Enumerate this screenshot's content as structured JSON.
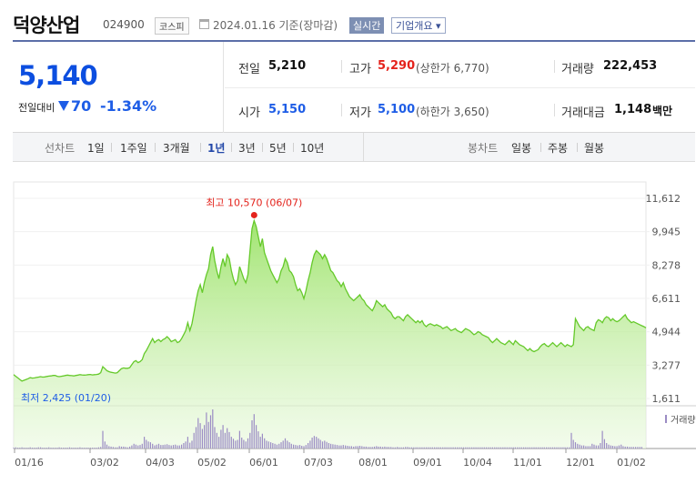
{
  "header": {
    "name": "덕양산업",
    "code": "024900",
    "market": "코스피",
    "date": "2024.01.16 기준(장마감)",
    "realtime": "실시간",
    "corp_info": "기업개요 ▾"
  },
  "summary": {
    "price": "5,140",
    "prev_label": "전일대비",
    "change": "70",
    "change_pct": "-1.34%",
    "prev_close_label": "전일",
    "prev_close": "5,210",
    "high_label": "고가",
    "high": "5,290",
    "upper_limit": "(상한가 6,770)",
    "volume_label": "거래량",
    "volume": "222,453",
    "open_label": "시가",
    "open": "5,150",
    "low_label": "저가",
    "low": "5,100",
    "lower_limit": "(하한가 3,650)",
    "amount_label": "거래대금",
    "amount": "1,148",
    "amount_unit": "백만"
  },
  "periods": {
    "label": "선차트",
    "items": [
      "1일",
      "1주일",
      "3개월",
      "1년",
      "3년",
      "5년",
      "10년"
    ],
    "active": "1년",
    "candle_label": "봉차트",
    "candle_items": [
      "일봉",
      "주봉",
      "월봉"
    ]
  },
  "chart_data": {
    "type": "area",
    "y_ticks": [
      "11,612",
      "9,945",
      "8,278",
      "6,611",
      "4,944",
      "3,277",
      "1,611"
    ],
    "ylim": [
      1611,
      11612
    ],
    "x_ticks": [
      "01/16",
      "03/02",
      "04/03",
      "05/02",
      "06/01",
      "07/03",
      "08/01",
      "09/01",
      "10/04",
      "11/01",
      "12/01",
      "01/02"
    ],
    "max_label": "최고 10,570 (06/07)",
    "min_label": "최저 2,425 (01/20)",
    "volume_label": "거래량",
    "accent": "#65c92a",
    "series": [
      {
        "values": [
          2800,
          2720,
          2640,
          2560,
          2480,
          2520,
          2560,
          2600,
          2650,
          2630,
          2640,
          2660,
          2680,
          2700,
          2680,
          2690,
          2710,
          2730,
          2740,
          2760,
          2760,
          2720,
          2700,
          2720,
          2740,
          2760,
          2780,
          2760,
          2750,
          2740,
          2760,
          2780,
          2800,
          2790,
          2780,
          2790,
          2800,
          2810,
          2790,
          2800,
          2810,
          2830,
          2900,
          3200,
          3100,
          3000,
          2950,
          2920,
          2900,
          2880,
          2900,
          3000,
          3100,
          3140,
          3120,
          3120,
          3150,
          3300,
          3450,
          3500,
          3400,
          3450,
          3550,
          3850,
          4000,
          4200,
          4400,
          4600,
          4400,
          4500,
          4550,
          4450,
          4550,
          4600,
          4700,
          4600,
          4450,
          4500,
          4550,
          4400,
          4450,
          4600,
          4800,
          5000,
          5400,
          5000,
          5350,
          5900,
          6500,
          7000,
          7300,
          6900,
          7400,
          7800,
          8100,
          8800,
          9200,
          8500,
          8000,
          7600,
          8200,
          8600,
          8200,
          8800,
          8600,
          8000,
          7600,
          7300,
          7500,
          8200,
          7900,
          7600,
          7400,
          7800,
          9000,
          10100,
          10500,
          10200,
          9700,
          9200,
          9600,
          8900,
          8600,
          8300,
          8000,
          7800,
          7600,
          7400,
          7600,
          8000,
          8200,
          8600,
          8400,
          8000,
          7900,
          7700,
          7300,
          7000,
          7100,
          6900,
          6600,
          7000,
          7500,
          7900,
          8400,
          8800,
          9000,
          8900,
          8800,
          8600,
          8800,
          8600,
          8300,
          8000,
          7900,
          7700,
          7500,
          7400,
          7200,
          7400,
          7100,
          6900,
          6700,
          6600,
          6500,
          6600,
          6700,
          6800,
          6600,
          6500,
          6300,
          6200,
          6100,
          6000,
          6200,
          6500,
          6400,
          6300,
          6200,
          6300,
          6100,
          6000,
          5900,
          5700,
          5600,
          5700,
          5700,
          5600,
          5500,
          5700,
          5800,
          5700,
          5600,
          5500,
          5400,
          5500,
          5400,
          5500,
          5300,
          5200,
          5300,
          5350,
          5300,
          5250,
          5300,
          5250,
          5200,
          5100,
          5150,
          5200,
          5100,
          5000,
          5050,
          5100,
          5000,
          4950,
          4900,
          5000,
          5100,
          5050,
          5000,
          4900,
          4800,
          4850,
          4950,
          4900,
          4800,
          4750,
          4700,
          4650,
          4500,
          4400,
          4500,
          4600,
          4500,
          4400,
          4350,
          4300,
          4400,
          4500,
          4400,
          4300,
          4500,
          4400,
          4300,
          4250,
          4200,
          4100,
          4000,
          4100,
          4000,
          3950,
          4000,
          4050,
          4200,
          4300,
          4350,
          4250,
          4200,
          4300,
          4400,
          4300,
          4200,
          4300,
          4400,
          4300,
          4200,
          4300,
          4250,
          4200,
          4300,
          5600,
          5400,
          5200,
          5100,
          5000,
          5150,
          5200,
          5100,
          5050,
          5000,
          5400,
          5550,
          5500,
          5400,
          5600,
          5700,
          5650,
          5500,
          5600,
          5500,
          5450,
          5500,
          5600,
          5700,
          5800,
          5600,
          5500,
          5400,
          5450,
          5400,
          5350,
          5300,
          5250,
          5200,
          5140
        ]
      }
    ],
    "volume": [
      2,
      3,
      2,
      2,
      3,
      2,
      2,
      2,
      3,
      2,
      2,
      2,
      3,
      3,
      2,
      2,
      2,
      3,
      2,
      2,
      2,
      2,
      3,
      2,
      2,
      2,
      2,
      3,
      2,
      2,
      2,
      2,
      3,
      2,
      2,
      2,
      2,
      2,
      2,
      2,
      2,
      3,
      4,
      45,
      18,
      10,
      6,
      5,
      4,
      3,
      3,
      6,
      5,
      5,
      4,
      3,
      5,
      8,
      12,
      10,
      8,
      9,
      12,
      30,
      22,
      18,
      16,
      12,
      8,
      10,
      12,
      9,
      9,
      10,
      11,
      9,
      8,
      9,
      10,
      8,
      8,
      10,
      14,
      18,
      30,
      15,
      20,
      40,
      55,
      78,
      65,
      50,
      60,
      92,
      68,
      85,
      100,
      55,
      40,
      30,
      48,
      60,
      40,
      52,
      42,
      30,
      25,
      20,
      22,
      45,
      28,
      22,
      18,
      26,
      40,
      72,
      88,
      60,
      44,
      30,
      38,
      26,
      20,
      18,
      16,
      14,
      12,
      10,
      12,
      16,
      20,
      26,
      20,
      16,
      12,
      10,
      9,
      8,
      9,
      7,
      6,
      9,
      14,
      20,
      28,
      32,
      30,
      26,
      22,
      18,
      20,
      17,
      14,
      12,
      11,
      10,
      9,
      8,
      8,
      9,
      8,
      7,
      6,
      6,
      5,
      6,
      6,
      7,
      6,
      5,
      5,
      4,
      4,
      4,
      5,
      6,
      5,
      5,
      4,
      5,
      4,
      4,
      4,
      3,
      3,
      4,
      3,
      3,
      3,
      4,
      4,
      3,
      3,
      3,
      3,
      3,
      3,
      3,
      3,
      3,
      3,
      3,
      3,
      3,
      3,
      3,
      3,
      3,
      3,
      3,
      3,
      3,
      3,
      3,
      3,
      3,
      3,
      3,
      3,
      3,
      3,
      3,
      3,
      3,
      3,
      3,
      3,
      3,
      3,
      3,
      3,
      3,
      3,
      3,
      3,
      3,
      3,
      3,
      3,
      3,
      3,
      3,
      3,
      3,
      3,
      3,
      3,
      3,
      3,
      3,
      3,
      3,
      3,
      3,
      3,
      3,
      3,
      3,
      3,
      3,
      3,
      3,
      3,
      3,
      3,
      3,
      3,
      3,
      3,
      40,
      22,
      16,
      12,
      10,
      8,
      8,
      6,
      6,
      6,
      12,
      10,
      8,
      8,
      14,
      45,
      24,
      14,
      10,
      8,
      7,
      6,
      6,
      8,
      10,
      6,
      5,
      5,
      4,
      4,
      4,
      4,
      4,
      4,
      4
    ]
  }
}
